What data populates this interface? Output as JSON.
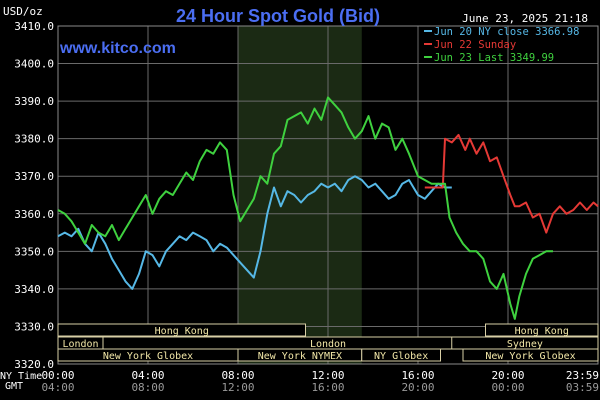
{
  "chart_data": {
    "type": "line",
    "title": "24 Hour Spot Gold (Bid)",
    "units_label": "USD/oz",
    "timestamp": "June 23, 2025 21:18",
    "watermark": "www.kitco.com",
    "gmt_label": "GMT",
    "ny_time_label": "NY Time",
    "ylim": [
      3320,
      3410
    ],
    "yticks": [
      "3410.0",
      "3400.0",
      "3390.0",
      "3380.0",
      "3370.0",
      "3360.0",
      "3350.0",
      "3340.0",
      "3330.0",
      "3320.0"
    ],
    "xlim": [
      0,
      24
    ],
    "xticks_ny": [
      "00:00",
      "04:00",
      "08:00",
      "12:00",
      "16:00",
      "20:00",
      "23:59"
    ],
    "xticks_gmt": [
      "04:00",
      "08:00",
      "12:00",
      "16:00",
      "20:00",
      "00:00",
      "03:59"
    ],
    "session_shading": {
      "from": 8.0,
      "to": 13.5,
      "label": "New York NYMEX"
    },
    "markets": [
      {
        "label": "Hong Kong",
        "from": 0.0,
        "to": 11.0,
        "row": 0
      },
      {
        "label": "Hong Kong",
        "from": 19.0,
        "to": 24.0,
        "row": 0
      },
      {
        "label": "London",
        "from": 0.0,
        "to": 2.0,
        "row": 1
      },
      {
        "label": "London",
        "from": 2.0,
        "to": 22.0,
        "row": 1
      },
      {
        "label": "Sydney",
        "from": 17.5,
        "to": 24.0,
        "row": 1
      },
      {
        "label": "New York Globex",
        "from": 0.0,
        "to": 8.0,
        "row": 2
      },
      {
        "label": "New York NYMEX",
        "from": 8.0,
        "to": 13.5,
        "row": 2
      },
      {
        "label": "NY Globex",
        "from": 13.5,
        "to": 17.0,
        "row": 2
      },
      {
        "label": "New York Globex",
        "from": 18.0,
        "to": 24.0,
        "row": 2
      }
    ],
    "legend": [
      {
        "label": "Jun 20 NY close 3366.98",
        "color": "#56b8e6"
      },
      {
        "label": "Jun 22 Sunday",
        "color": "#e53935"
      },
      {
        "label": "Jun 23 Last 3349.99",
        "color": "#3fd13f"
      }
    ],
    "series": [
      {
        "name": "Jun 20 NY close 3366.98",
        "color": "#56b8e6",
        "x": [
          0,
          0.3,
          0.6,
          0.9,
          1.2,
          1.5,
          1.8,
          2.1,
          2.4,
          2.7,
          3.0,
          3.3,
          3.6,
          3.9,
          4.2,
          4.5,
          4.8,
          5.1,
          5.4,
          5.7,
          6.0,
          6.3,
          6.6,
          6.9,
          7.2,
          7.5,
          7.8,
          8.1,
          8.4,
          8.7,
          9.0,
          9.3,
          9.6,
          9.9,
          10.2,
          10.5,
          10.8,
          11.1,
          11.4,
          11.7,
          12.0,
          12.3,
          12.6,
          12.9,
          13.2,
          13.5,
          13.8,
          14.1,
          14.4,
          14.7,
          15.0,
          15.3,
          15.6,
          16.0,
          16.3,
          16.6,
          16.9,
          17.2,
          17.5
        ],
        "y": [
          3354,
          3355,
          3354,
          3356,
          3352,
          3350,
          3355,
          3352,
          3348,
          3345,
          3342,
          3340,
          3344,
          3350,
          3349,
          3346,
          3350,
          3352,
          3354,
          3353,
          3355,
          3354,
          3353,
          3350,
          3352,
          3351,
          3349,
          3347,
          3345,
          3343,
          3350,
          3360,
          3367,
          3362,
          3366,
          3365,
          3363,
          3365,
          3366,
          3368,
          3367,
          3368,
          3366,
          3369,
          3370,
          3369,
          3367,
          3368,
          3366,
          3364,
          3365,
          3368,
          3369,
          3365,
          3364,
          3366,
          3368,
          3367,
          3367
        ]
      },
      {
        "name": "Jun 22 Sunday",
        "color": "#e53935",
        "x": [
          16.3,
          16.6,
          16.9,
          17.1,
          17.2,
          17.5,
          17.8,
          18.1,
          18.3,
          18.6,
          18.9,
          19.2,
          19.5,
          19.8,
          20.1,
          20.3,
          20.5,
          20.8,
          21.1,
          21.4,
          21.7,
          22.0,
          22.3,
          22.6,
          22.9,
          23.2,
          23.5,
          23.8,
          24.0
        ],
        "y": [
          3367,
          3367,
          3367,
          3367,
          3380,
          3379,
          3381,
          3377,
          3380,
          3376,
          3379,
          3374,
          3375,
          3370,
          3365,
          3362,
          3362,
          3363,
          3359,
          3360,
          3355,
          3360,
          3362,
          3360,
          3361,
          3363,
          3361,
          3363,
          3362
        ]
      },
      {
        "name": "Jun 23 Last 3349.99",
        "color": "#3fd13f",
        "x": [
          0,
          0.3,
          0.6,
          0.9,
          1.2,
          1.5,
          1.8,
          2.1,
          2.4,
          2.7,
          3.0,
          3.3,
          3.6,
          3.9,
          4.2,
          4.5,
          4.8,
          5.1,
          5.4,
          5.7,
          6.0,
          6.3,
          6.6,
          6.9,
          7.2,
          7.5,
          7.8,
          8.1,
          8.4,
          8.7,
          9.0,
          9.3,
          9.6,
          9.9,
          10.2,
          10.5,
          10.8,
          11.1,
          11.4,
          11.7,
          12.0,
          12.3,
          12.6,
          12.9,
          13.2,
          13.5,
          13.8,
          14.1,
          14.4,
          14.7,
          15.0,
          15.3,
          15.6,
          16.0,
          16.3,
          16.6,
          16.9,
          17.2,
          17.4,
          17.7,
          18.0,
          18.3,
          18.6,
          18.9,
          19.2,
          19.5,
          19.8,
          20.1,
          20.3,
          20.5,
          20.8,
          21.1,
          21.4,
          21.7,
          22.0
        ],
        "y": [
          3361,
          3360,
          3358,
          3355,
          3352,
          3357,
          3355,
          3354,
          3357,
          3353,
          3356,
          3359,
          3362,
          3365,
          3360,
          3364,
          3366,
          3365,
          3368,
          3371,
          3369,
          3374,
          3377,
          3376,
          3379,
          3377,
          3365,
          3358,
          3361,
          3364,
          3370,
          3368,
          3376,
          3378,
          3385,
          3386,
          3387,
          3384,
          3388,
          3385,
          3391,
          3389,
          3387,
          3383,
          3380,
          3382,
          3386,
          3380,
          3384,
          3383,
          3377,
          3380,
          3376,
          3370,
          3369,
          3368,
          3368,
          3368,
          3359,
          3355,
          3352,
          3350,
          3350,
          3348,
          3342,
          3340,
          3344,
          3336,
          3332,
          3338,
          3344,
          3348,
          3349,
          3350,
          3350
        ]
      }
    ]
  }
}
